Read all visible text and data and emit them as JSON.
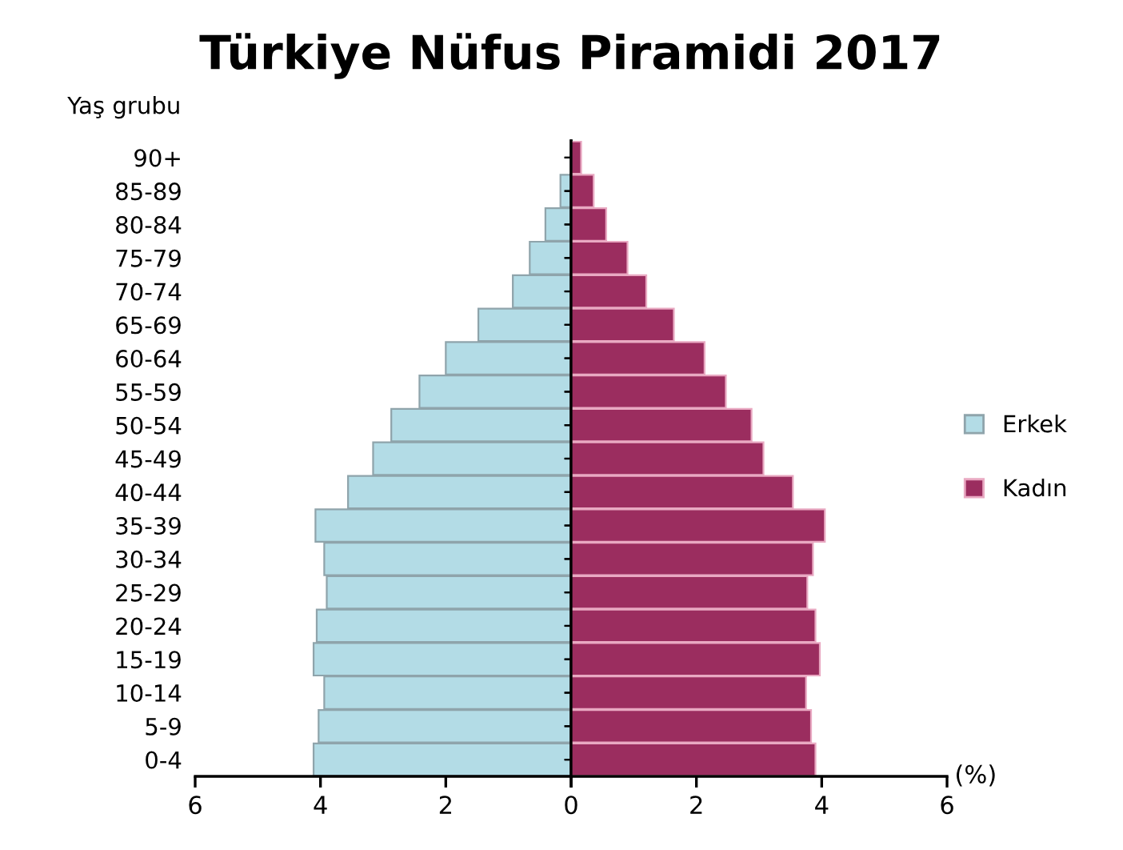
{
  "chart_data": [
    {
      "type": "bar",
      "orientation": "horizontal",
      "title": "Türkiye Nüfus Piramidi 2017",
      "ylabel": "Yaş grubu",
      "categories": [
        "90+",
        "85-89",
        "80-84",
        "75-79",
        "70-74",
        "65-69",
        "60-64",
        "55-59",
        "50-54",
        "45-49",
        "40-44",
        "35-39",
        "30-34",
        "25-29",
        "20-24",
        "15-19",
        "10-14",
        "5-9",
        "0-4"
      ],
      "series": [
        {
          "name": "Erkek",
          "color": "#b3dce6",
          "values": [
            null,
            0.17,
            0.41,
            0.66,
            0.93,
            1.48,
            2.0,
            2.42,
            2.87,
            3.16,
            3.56,
            4.08,
            3.94,
            3.9,
            4.06,
            4.11,
            3.94,
            4.03,
            4.11
          ]
        }
      ],
      "xlim": [
        6,
        0
      ],
      "xticks": [
        6,
        4,
        2,
        {
          "value": 0,
          "label": null
        }
      ],
      "legend": "right"
    },
    {
      "type": "bar",
      "orientation": "horizontal",
      "xlabel": "(%)",
      "series": [
        {
          "name": "Kadın",
          "color": "#9b2d5f",
          "values": [
            0.16,
            0.36,
            0.56,
            0.9,
            1.2,
            1.64,
            2.13,
            2.47,
            2.88,
            3.07,
            3.54,
            4.05,
            3.86,
            3.77,
            3.9,
            3.97,
            3.75,
            3.83,
            3.9
          ]
        }
      ],
      "xlim": [
        0,
        6
      ],
      "xticks": [
        0,
        2,
        4,
        6
      ],
      "tick_labels": "x",
      "legend": "right"
    }
  ]
}
